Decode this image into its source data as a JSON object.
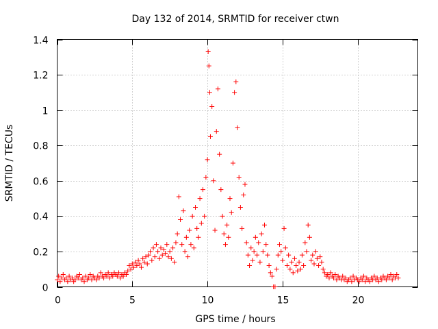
{
  "chart_data": {
    "type": "scatter",
    "title": "Day 132 of 2014, SRMTID for receiver ctwn",
    "xlabel": "GPS time / hours",
    "ylabel": "SRMTID / TECUs",
    "xlim": [
      0,
      24
    ],
    "ylim": [
      0,
      1.4
    ],
    "xticks": [
      0,
      5,
      10,
      15,
      20
    ],
    "xtick_labels": [
      "0",
      "5",
      "10",
      "15",
      "20"
    ],
    "yticks": [
      0,
      0.2,
      0.4,
      0.6,
      0.8,
      1.0,
      1.2,
      1.4
    ],
    "ytick_labels": [
      "0",
      "0.2",
      "0.4",
      "0.6",
      "0.8",
      "1",
      "1.2",
      "1.4"
    ],
    "grid": true,
    "marker": "+",
    "color": "#ff0000",
    "series": [
      {
        "name": "SRMTID",
        "points": [
          [
            0.0,
            0.04
          ],
          [
            0.1,
            0.06
          ],
          [
            0.2,
            0.03
          ],
          [
            0.3,
            0.05
          ],
          [
            0.4,
            0.07
          ],
          [
            0.5,
            0.04
          ],
          [
            0.6,
            0.05
          ],
          [
            0.7,
            0.03
          ],
          [
            0.8,
            0.06
          ],
          [
            0.9,
            0.04
          ],
          [
            1.0,
            0.05
          ],
          [
            1.1,
            0.03
          ],
          [
            1.2,
            0.04
          ],
          [
            1.3,
            0.06
          ],
          [
            1.4,
            0.05
          ],
          [
            1.5,
            0.07
          ],
          [
            1.6,
            0.04
          ],
          [
            1.7,
            0.05
          ],
          [
            1.8,
            0.03
          ],
          [
            1.9,
            0.06
          ],
          [
            2.0,
            0.04
          ],
          [
            2.1,
            0.05
          ],
          [
            2.2,
            0.07
          ],
          [
            2.3,
            0.04
          ],
          [
            2.4,
            0.06
          ],
          [
            2.5,
            0.05
          ],
          [
            2.6,
            0.04
          ],
          [
            2.7,
            0.06
          ],
          [
            2.8,
            0.05
          ],
          [
            2.9,
            0.08
          ],
          [
            3.0,
            0.06
          ],
          [
            3.1,
            0.05
          ],
          [
            3.2,
            0.07
          ],
          [
            3.3,
            0.06
          ],
          [
            3.4,
            0.08
          ],
          [
            3.5,
            0.05
          ],
          [
            3.6,
            0.07
          ],
          [
            3.7,
            0.06
          ],
          [
            3.8,
            0.08
          ],
          [
            3.9,
            0.07
          ],
          [
            4.0,
            0.06
          ],
          [
            4.1,
            0.08
          ],
          [
            4.2,
            0.05
          ],
          [
            4.3,
            0.07
          ],
          [
            4.4,
            0.06
          ],
          [
            4.5,
            0.08
          ],
          [
            4.6,
            0.07
          ],
          [
            4.7,
            0.09
          ],
          [
            4.8,
            0.12
          ],
          [
            4.9,
            0.1
          ],
          [
            5.0,
            0.13
          ],
          [
            5.1,
            0.11
          ],
          [
            5.2,
            0.14
          ],
          [
            5.3,
            0.12
          ],
          [
            5.4,
            0.15
          ],
          [
            5.5,
            0.13
          ],
          [
            5.6,
            0.11
          ],
          [
            5.7,
            0.16
          ],
          [
            5.8,
            0.14
          ],
          [
            5.9,
            0.17
          ],
          [
            6.0,
            0.13
          ],
          [
            6.1,
            0.18
          ],
          [
            6.2,
            0.2
          ],
          [
            6.3,
            0.15
          ],
          [
            6.4,
            0.22
          ],
          [
            6.5,
            0.17
          ],
          [
            6.6,
            0.24
          ],
          [
            6.7,
            0.2
          ],
          [
            6.8,
            0.16
          ],
          [
            6.9,
            0.22
          ],
          [
            7.0,
            0.18
          ],
          [
            7.1,
            0.21
          ],
          [
            7.2,
            0.19
          ],
          [
            7.3,
            0.24
          ],
          [
            7.4,
            0.17
          ],
          [
            7.5,
            0.2
          ],
          [
            7.6,
            0.16
          ],
          [
            7.7,
            0.22
          ],
          [
            7.8,
            0.14
          ],
          [
            7.9,
            0.25
          ],
          [
            8.0,
            0.3
          ],
          [
            8.1,
            0.51
          ],
          [
            8.2,
            0.38
          ],
          [
            8.3,
            0.24
          ],
          [
            8.4,
            0.43
          ],
          [
            8.5,
            0.2
          ],
          [
            8.6,
            0.28
          ],
          [
            8.7,
            0.17
          ],
          [
            8.8,
            0.32
          ],
          [
            8.9,
            0.24
          ],
          [
            9.0,
            0.4
          ],
          [
            9.1,
            0.22
          ],
          [
            9.2,
            0.45
          ],
          [
            9.3,
            0.33
          ],
          [
            9.4,
            0.28
          ],
          [
            9.5,
            0.5
          ],
          [
            9.6,
            0.36
          ],
          [
            9.7,
            0.55
          ],
          [
            9.8,
            0.4
          ],
          [
            9.9,
            0.62
          ],
          [
            10.0,
            0.72
          ],
          [
            10.05,
            1.33
          ],
          [
            10.1,
            1.25
          ],
          [
            10.15,
            1.1
          ],
          [
            10.2,
            0.85
          ],
          [
            10.3,
            1.02
          ],
          [
            10.4,
            0.6
          ],
          [
            10.5,
            0.32
          ],
          [
            10.6,
            0.88
          ],
          [
            10.7,
            1.12
          ],
          [
            10.8,
            0.75
          ],
          [
            10.9,
            0.55
          ],
          [
            11.0,
            0.4
          ],
          [
            11.1,
            0.3
          ],
          [
            11.2,
            0.24
          ],
          [
            11.3,
            0.35
          ],
          [
            11.4,
            0.28
          ],
          [
            11.5,
            0.5
          ],
          [
            11.6,
            0.42
          ],
          [
            11.7,
            0.7
          ],
          [
            11.8,
            1.1
          ],
          [
            11.9,
            1.16
          ],
          [
            12.0,
            0.9
          ],
          [
            12.1,
            0.62
          ],
          [
            12.2,
            0.45
          ],
          [
            12.3,
            0.33
          ],
          [
            12.4,
            0.52
          ],
          [
            12.5,
            0.58
          ],
          [
            12.6,
            0.25
          ],
          [
            12.7,
            0.18
          ],
          [
            12.8,
            0.12
          ],
          [
            12.9,
            0.22
          ],
          [
            13.0,
            0.15
          ],
          [
            13.1,
            0.2
          ],
          [
            13.2,
            0.28
          ],
          [
            13.3,
            0.18
          ],
          [
            13.4,
            0.25
          ],
          [
            13.5,
            0.14
          ],
          [
            13.6,
            0.3
          ],
          [
            13.7,
            0.2
          ],
          [
            13.8,
            0.35
          ],
          [
            13.9,
            0.24
          ],
          [
            14.0,
            0.18
          ],
          [
            14.1,
            0.12
          ],
          [
            14.2,
            0.08
          ],
          [
            14.3,
            0.06
          ],
          [
            14.4,
            0.0
          ],
          [
            14.5,
            0.0
          ],
          [
            14.6,
            0.1
          ],
          [
            14.7,
            0.18
          ],
          [
            14.8,
            0.24
          ],
          [
            14.9,
            0.2
          ],
          [
            15.0,
            0.15
          ],
          [
            15.1,
            0.33
          ],
          [
            15.2,
            0.22
          ],
          [
            15.3,
            0.12
          ],
          [
            15.4,
            0.18
          ],
          [
            15.5,
            0.1
          ],
          [
            15.6,
            0.14
          ],
          [
            15.7,
            0.08
          ],
          [
            15.8,
            0.16
          ],
          [
            15.9,
            0.12
          ],
          [
            16.0,
            0.09
          ],
          [
            16.1,
            0.14
          ],
          [
            16.2,
            0.1
          ],
          [
            16.3,
            0.18
          ],
          [
            16.4,
            0.12
          ],
          [
            16.5,
            0.25
          ],
          [
            16.6,
            0.2
          ],
          [
            16.7,
            0.35
          ],
          [
            16.8,
            0.28
          ],
          [
            16.9,
            0.15
          ],
          [
            17.0,
            0.18
          ],
          [
            17.1,
            0.13
          ],
          [
            17.2,
            0.2
          ],
          [
            17.3,
            0.16
          ],
          [
            17.4,
            0.12
          ],
          [
            17.5,
            0.17
          ],
          [
            17.6,
            0.14
          ],
          [
            17.7,
            0.1
          ],
          [
            17.8,
            0.08
          ],
          [
            17.9,
            0.06
          ],
          [
            18.0,
            0.07
          ],
          [
            18.1,
            0.05
          ],
          [
            18.2,
            0.08
          ],
          [
            18.3,
            0.06
          ],
          [
            18.4,
            0.05
          ],
          [
            18.5,
            0.07
          ],
          [
            18.6,
            0.04
          ],
          [
            18.7,
            0.06
          ],
          [
            18.8,
            0.05
          ],
          [
            18.9,
            0.04
          ],
          [
            19.0,
            0.06
          ],
          [
            19.1,
            0.04
          ],
          [
            19.2,
            0.05
          ],
          [
            19.3,
            0.03
          ],
          [
            19.4,
            0.04
          ],
          [
            19.5,
            0.05
          ],
          [
            19.6,
            0.03
          ],
          [
            19.7,
            0.06
          ],
          [
            19.8,
            0.04
          ],
          [
            19.9,
            0.05
          ],
          [
            20.0,
            0.04
          ],
          [
            20.1,
            0.03
          ],
          [
            20.2,
            0.05
          ],
          [
            20.3,
            0.04
          ],
          [
            20.4,
            0.06
          ],
          [
            20.5,
            0.03
          ],
          [
            20.6,
            0.05
          ],
          [
            20.7,
            0.04
          ],
          [
            20.8,
            0.03
          ],
          [
            20.9,
            0.05
          ],
          [
            21.0,
            0.04
          ],
          [
            21.1,
            0.06
          ],
          [
            21.2,
            0.04
          ],
          [
            21.3,
            0.05
          ],
          [
            21.4,
            0.03
          ],
          [
            21.5,
            0.05
          ],
          [
            21.6,
            0.04
          ],
          [
            21.7,
            0.06
          ],
          [
            21.8,
            0.05
          ],
          [
            21.9,
            0.04
          ],
          [
            22.0,
            0.06
          ],
          [
            22.1,
            0.05
          ],
          [
            22.2,
            0.07
          ],
          [
            22.3,
            0.04
          ],
          [
            22.4,
            0.06
          ],
          [
            22.5,
            0.05
          ],
          [
            22.6,
            0.07
          ],
          [
            22.7,
            0.05
          ]
        ]
      }
    ]
  }
}
